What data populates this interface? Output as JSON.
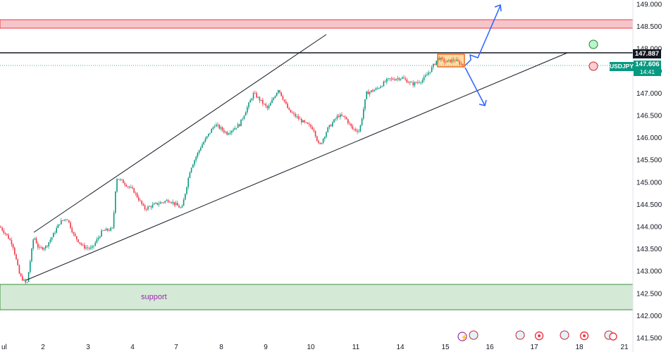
{
  "chart_data": {
    "type": "candlestick",
    "symbol": "USDJPY",
    "y_axis": {
      "ticks": [
        "149.000",
        "148.500",
        "148.000",
        "147.500",
        "147.000",
        "146.500",
        "146.000",
        "145.500",
        "145.000",
        "144.500",
        "144.000",
        "143.500",
        "143.000",
        "142.500",
        "142.000",
        "141.500"
      ],
      "range": [
        141.35,
        149.05
      ]
    },
    "x_axis": {
      "ticks": [
        "ul",
        "2",
        "3",
        "4",
        "7",
        "8",
        "9",
        "10",
        "11",
        "14",
        "15",
        "16",
        "17",
        "18",
        "21"
      ]
    },
    "last_price": "147.606",
    "countdown": "14:41",
    "horizontal_level": "147.887",
    "zones": [
      {
        "name": "resistance",
        "from": 148.45,
        "to": 148.62,
        "color": "#f23645"
      },
      {
        "name": "support",
        "label": "support",
        "from": 142.03,
        "to": 142.6,
        "color": "#388e3c"
      }
    ],
    "price_path": [
      [
        0,
        144.0
      ],
      [
        10,
        143.8
      ],
      [
        18,
        143.6
      ],
      [
        28,
        142.9
      ],
      [
        38,
        142.7
      ],
      [
        48,
        143.8
      ],
      [
        55,
        143.5
      ],
      [
        65,
        143.55
      ],
      [
        75,
        143.8
      ],
      [
        85,
        144.1
      ],
      [
        95,
        144.2
      ],
      [
        105,
        143.8
      ],
      [
        118,
        143.55
      ],
      [
        130,
        143.5
      ],
      [
        145,
        143.9
      ],
      [
        160,
        143.95
      ],
      [
        165,
        145.1
      ],
      [
        175,
        145.0
      ],
      [
        190,
        144.8
      ],
      [
        205,
        144.4
      ],
      [
        220,
        144.5
      ],
      [
        240,
        144.6
      ],
      [
        258,
        144.4
      ],
      [
        270,
        145.3
      ],
      [
        285,
        145.8
      ],
      [
        305,
        146.3
      ],
      [
        322,
        146.1
      ],
      [
        340,
        146.3
      ],
      [
        360,
        147.0
      ],
      [
        380,
        146.65
      ],
      [
        395,
        147.1
      ],
      [
        410,
        146.6
      ],
      [
        430,
        146.35
      ],
      [
        445,
        146.2
      ],
      [
        453,
        145.8
      ],
      [
        465,
        146.2
      ],
      [
        480,
        146.5
      ],
      [
        490,
        146.45
      ],
      [
        500,
        146.2
      ],
      [
        510,
        146.15
      ],
      [
        520,
        147.0
      ],
      [
        535,
        147.1
      ],
      [
        550,
        147.3
      ],
      [
        570,
        147.35
      ],
      [
        585,
        147.2
      ],
      [
        600,
        147.3
      ],
      [
        610,
        147.5
      ],
      [
        622,
        147.8
      ],
      [
        632,
        147.7
      ],
      [
        645,
        147.75
      ],
      [
        658,
        147.62
      ]
    ],
    "annotations": {
      "ellipse_green_level": 147.98,
      "ellipse_red_level": 147.58,
      "consolidation_box": [
        147.62,
        147.86
      ]
    },
    "colors": {
      "up": "#089981",
      "down": "#f23645",
      "trendline": "#131722",
      "arrow": "#2962ff",
      "box": "#ff9800"
    }
  }
}
